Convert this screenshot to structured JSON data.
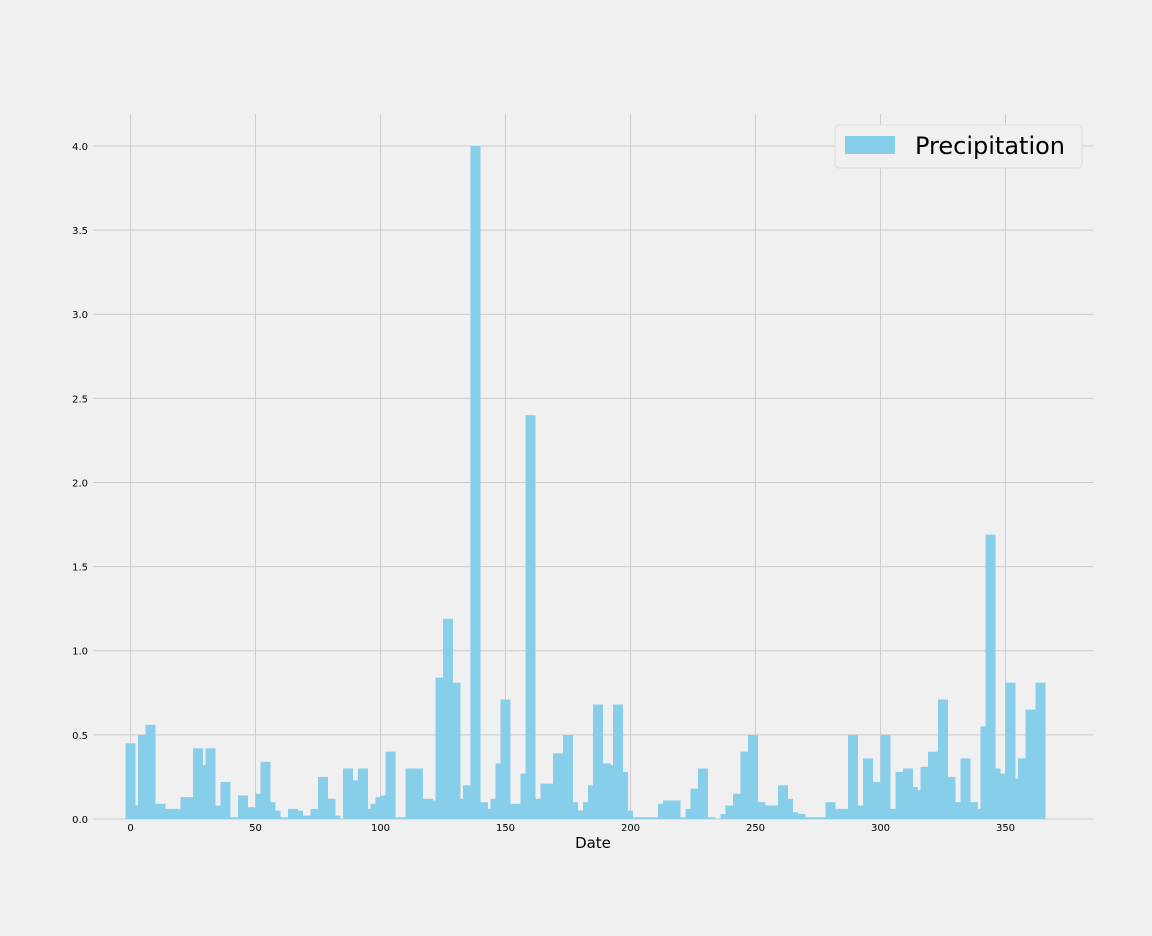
{
  "chart_data": {
    "type": "bar",
    "title": "",
    "xlabel": "Date",
    "ylabel": "",
    "xlim": [
      -15,
      385
    ],
    "ylim": [
      0,
      4.19
    ],
    "xticks": [
      0,
      50,
      100,
      150,
      200,
      250,
      300,
      350
    ],
    "yticks": [
      0.0,
      0.5,
      1.0,
      1.5,
      2.0,
      2.5,
      3.0,
      3.5,
      4.0
    ],
    "xtick_labels": [
      "0",
      "50",
      "100",
      "150",
      "200",
      "250",
      "300",
      "350"
    ],
    "ytick_labels": [
      "0.0",
      "0.5",
      "1.0",
      "1.5",
      "2.0",
      "2.5",
      "3.0",
      "3.5",
      "4.0"
    ],
    "grid": true,
    "legend_position": "top-right",
    "bar_width": 4,
    "colors": {
      "bar": "#87ceeb",
      "background": "#f0f0f0",
      "grid": "#cbcbcb"
    },
    "series": [
      {
        "name": "Precipitation",
        "x": [
          0,
          2,
          5,
          8,
          12,
          15,
          18,
          20,
          22,
          25,
          27,
          29,
          32,
          35,
          38,
          41,
          45,
          47,
          50,
          52,
          54,
          56,
          58,
          62,
          65,
          67,
          70,
          72,
          74,
          77,
          80,
          82,
          87,
          90,
          93,
          96,
          98,
          100,
          102,
          104,
          106,
          110,
          112,
          115,
          119,
          121,
          124,
          127,
          130,
          133,
          135,
          138,
          141,
          144,
          146,
          148,
          150,
          153,
          156,
          158,
          160,
          162,
          164,
          166,
          168,
          171,
          173,
          175,
          177,
          179,
          181,
          183,
          185,
          187,
          190,
          193,
          195,
          197,
          199,
          202,
          205,
          208,
          211,
          213,
          215,
          218,
          221,
          224,
          226,
          229,
          232,
          238,
          240,
          243,
          246,
          249,
          252,
          255,
          258,
          261,
          263,
          265,
          268,
          271,
          274,
          277,
          280,
          283,
          286,
          289,
          292,
          295,
          298,
          300,
          302,
          305,
          308,
          311,
          313,
          316,
          318,
          321,
          323,
          325,
          328,
          331,
          334,
          337,
          340,
          342,
          344,
          346,
          349,
          352,
          354,
          357,
          360,
          362,
          364
        ],
        "values": [
          0.45,
          0.08,
          0.5,
          0.56,
          0.09,
          0.06,
          0.06,
          0.05,
          0.13,
          0.13,
          0.42,
          0.32,
          0.42,
          0.08,
          0.22,
          0.01,
          0.14,
          0.07,
          0.07,
          0.15,
          0.34,
          0.1,
          0.05,
          0.01,
          0.06,
          0.05,
          0.02,
          0.01,
          0.06,
          0.25,
          0.12,
          0.02,
          0.3,
          0.23,
          0.3,
          0.06,
          0.09,
          0.13,
          0.14,
          0.4,
          0.01,
          0.01,
          0.3,
          0.3,
          0.12,
          0.11,
          0.84,
          1.19,
          0.81,
          0.12,
          0.2,
          4.0,
          0.1,
          0.06,
          0.12,
          0.33,
          0.71,
          0.09,
          0.09,
          0.27,
          2.4,
          0.05,
          0.12,
          0.21,
          0.21,
          0.39,
          0.12,
          0.5,
          0.1,
          0.05,
          0.05,
          0.1,
          0.2,
          0.68,
          0.33,
          0.32,
          0.68,
          0.28,
          0.05,
          0.01,
          0.01,
          0.01,
          0.01,
          0.09,
          0.11,
          0.11,
          0.01,
          0.06,
          0.18,
          0.3,
          0.01,
          0.03,
          0.08,
          0.15,
          0.4,
          0.5,
          0.1,
          0.08,
          0.08,
          0.2,
          0.12,
          0.04,
          0.03,
          0.01,
          0.01,
          0.01,
          0.1,
          0.06,
          0.06,
          0.5,
          0.08,
          0.36,
          0.22,
          0.12,
          0.5,
          0.06,
          0.28,
          0.3,
          0.19,
          0.17,
          0.31,
          0.4,
          0.19,
          0.71,
          0.25,
          0.1,
          0.36,
          0.1,
          0.06,
          0.55,
          1.69,
          0.3,
          0.27,
          0.81,
          0.24,
          0.36,
          0.65,
          0.35,
          0.81
        ]
      }
    ]
  }
}
